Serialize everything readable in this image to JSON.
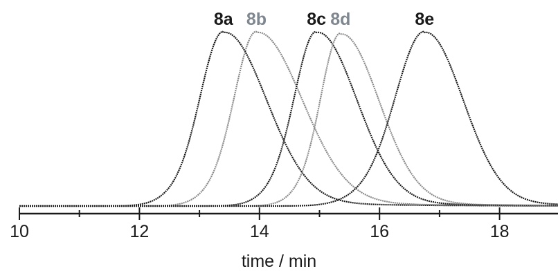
{
  "chart_data": {
    "type": "line",
    "title": "",
    "xlabel": "time / min",
    "ylabel": "",
    "xlim": [
      10,
      19
    ],
    "ylim": [
      0,
      1
    ],
    "x_ticks": [
      10,
      12,
      14,
      16,
      18
    ],
    "x_tick_labels": [
      "10",
      "12",
      "14",
      "16",
      "18"
    ],
    "grid": false,
    "legend": "none",
    "series": [
      {
        "name": "8a",
        "color": "#1a1a1a",
        "label_color": "#1a1a1a",
        "peak_x": 13.4,
        "peak_y": 1.0,
        "start_x": 12.4,
        "end_x": 15.8
      },
      {
        "name": "8b",
        "color": "#8a8a8a",
        "label_color": "#7f8790",
        "peak_x": 13.95,
        "peak_y": 1.0,
        "start_x": 13.0,
        "end_x": 16.5
      },
      {
        "name": "8c",
        "color": "#1a1a1a",
        "label_color": "#1a1a1a",
        "peak_x": 14.95,
        "peak_y": 1.0,
        "start_x": 14.0,
        "end_x": 17.2
      },
      {
        "name": "8d",
        "color": "#8a8a8a",
        "label_color": "#7f8790",
        "peak_x": 15.35,
        "peak_y": 0.99,
        "start_x": 14.5,
        "end_x": 17.5
      },
      {
        "name": "8e",
        "color": "#1a1a1a",
        "label_color": "#1a1a1a",
        "peak_x": 16.75,
        "peak_y": 1.0,
        "start_x": 15.5,
        "end_x": 18.9
      }
    ]
  }
}
